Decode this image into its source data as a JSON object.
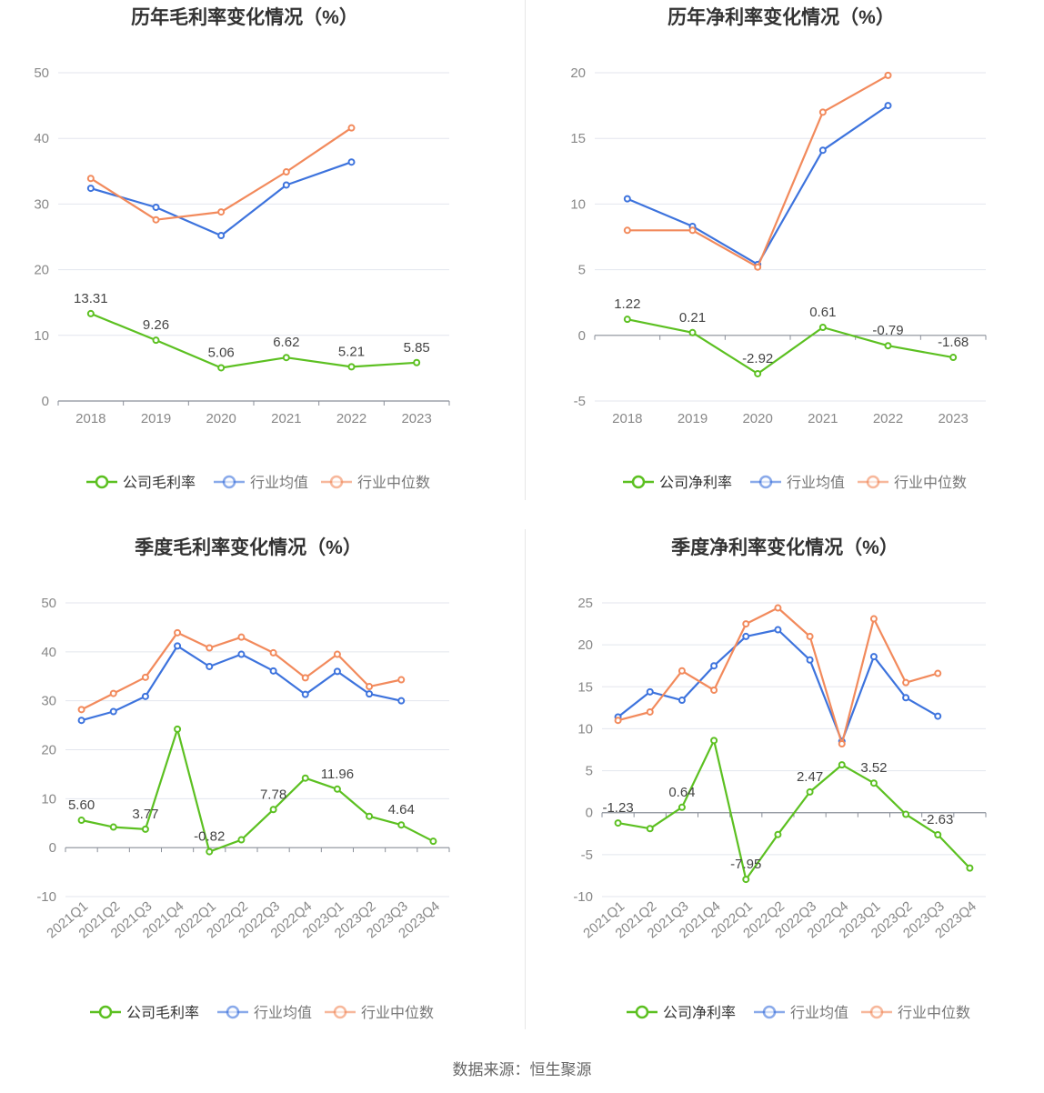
{
  "colors": {
    "company": "#5cc021",
    "avg": "#3d73dd",
    "median": "#f28a5c"
  },
  "footer": {
    "source": "数据来源：恒生聚源"
  },
  "chart_data": [
    {
      "type": "line",
      "title": "历年毛利率变化情况（%）",
      "categories": [
        "2018",
        "2019",
        "2020",
        "2021",
        "2022",
        "2023"
      ],
      "yticks": [
        0,
        10,
        20,
        30,
        40,
        50
      ],
      "ylim": [
        0,
        50
      ],
      "grid": true,
      "legend_position": "bottom",
      "series": [
        {
          "name": "公司毛利率",
          "key": "company",
          "values": [
            13.31,
            9.26,
            5.06,
            6.62,
            5.21,
            5.85
          ],
          "labels": [
            "13.31",
            "9.26",
            "5.06",
            "6.62",
            "5.21",
            "5.85"
          ]
        },
        {
          "name": "行业均值",
          "key": "avg",
          "values": [
            32.4,
            29.5,
            25.2,
            32.9,
            36.4,
            null
          ]
        },
        {
          "name": "行业中位数",
          "key": "median",
          "values": [
            33.9,
            27.6,
            28.8,
            34.9,
            41.6,
            null
          ]
        }
      ]
    },
    {
      "type": "line",
      "title": "历年净利率变化情况（%）",
      "categories": [
        "2018",
        "2019",
        "2020",
        "2021",
        "2022",
        "2023"
      ],
      "yticks": [
        -5,
        0,
        5,
        10,
        15,
        20
      ],
      "ylim": [
        -5,
        20
      ],
      "grid": true,
      "legend_position": "bottom",
      "series": [
        {
          "name": "公司净利率",
          "key": "company",
          "values": [
            1.22,
            0.21,
            -2.92,
            0.61,
            -0.79,
            -1.68
          ],
          "labels": [
            "1.22",
            "0.21",
            "-2.92",
            "0.61",
            "-0.79",
            "-1.68"
          ]
        },
        {
          "name": "行业均值",
          "key": "avg",
          "values": [
            10.4,
            8.3,
            5.4,
            14.1,
            17.5,
            null
          ]
        },
        {
          "name": "行业中位数",
          "key": "median",
          "values": [
            8.0,
            8.0,
            5.2,
            17.0,
            19.8,
            null
          ]
        }
      ]
    },
    {
      "type": "line",
      "title": "季度毛利率变化情况（%）",
      "categories": [
        "2021Q1",
        "2021Q2",
        "2021Q3",
        "2021Q4",
        "2022Q1",
        "2022Q2",
        "2022Q3",
        "2022Q4",
        "2023Q1",
        "2023Q2",
        "2023Q3",
        "2023Q4"
      ],
      "yticks": [
        -10,
        0,
        10,
        20,
        30,
        40,
        50
      ],
      "ylim": [
        -10,
        50
      ],
      "grid": true,
      "legend_position": "bottom",
      "series": [
        {
          "name": "公司毛利率",
          "key": "company",
          "values": [
            5.6,
            4.2,
            3.77,
            24.2,
            -0.82,
            1.6,
            7.78,
            14.2,
            11.96,
            6.4,
            4.64,
            1.3
          ],
          "labels": [
            "5.60",
            "",
            "3.77",
            "",
            "-0.82",
            "",
            "7.78",
            "",
            "11.96",
            "",
            "4.64",
            ""
          ]
        },
        {
          "name": "行业均值",
          "key": "avg",
          "values": [
            26.0,
            27.8,
            30.9,
            41.2,
            37.0,
            39.5,
            36.1,
            31.3,
            36.0,
            31.4,
            30.0,
            null
          ]
        },
        {
          "name": "行业中位数",
          "key": "median",
          "values": [
            28.2,
            31.5,
            34.8,
            43.9,
            40.8,
            43.0,
            39.8,
            34.7,
            39.5,
            32.9,
            34.3,
            null
          ]
        }
      ]
    },
    {
      "type": "line",
      "title": "季度净利率变化情况（%）",
      "categories": [
        "2021Q1",
        "2021Q2",
        "2021Q3",
        "2021Q4",
        "2022Q1",
        "2022Q2",
        "2022Q3",
        "2022Q4",
        "2023Q1",
        "2023Q2",
        "2023Q3",
        "2023Q4"
      ],
      "yticks": [
        -10,
        -5,
        0,
        5,
        10,
        15,
        20,
        25
      ],
      "ylim": [
        -10,
        25
      ],
      "grid": true,
      "legend_position": "bottom",
      "series": [
        {
          "name": "公司净利率",
          "key": "company",
          "values": [
            -1.23,
            -1.9,
            0.64,
            8.6,
            -7.95,
            -2.6,
            2.47,
            5.7,
            3.52,
            -0.2,
            -2.63,
            -6.6
          ],
          "labels": [
            "-1.23",
            "",
            "0.64",
            "",
            "-7.95",
            "",
            "2.47",
            "",
            "3.52",
            "",
            "-2.63",
            ""
          ]
        },
        {
          "name": "行业均值",
          "key": "avg",
          "values": [
            11.4,
            14.4,
            13.4,
            17.5,
            21.0,
            21.8,
            18.2,
            8.5,
            18.6,
            13.7,
            11.5,
            null
          ]
        },
        {
          "name": "行业中位数",
          "key": "median",
          "values": [
            11.0,
            12.0,
            16.9,
            14.6,
            22.5,
            24.4,
            21.0,
            8.2,
            23.1,
            15.5,
            16.6,
            null
          ]
        }
      ]
    }
  ]
}
